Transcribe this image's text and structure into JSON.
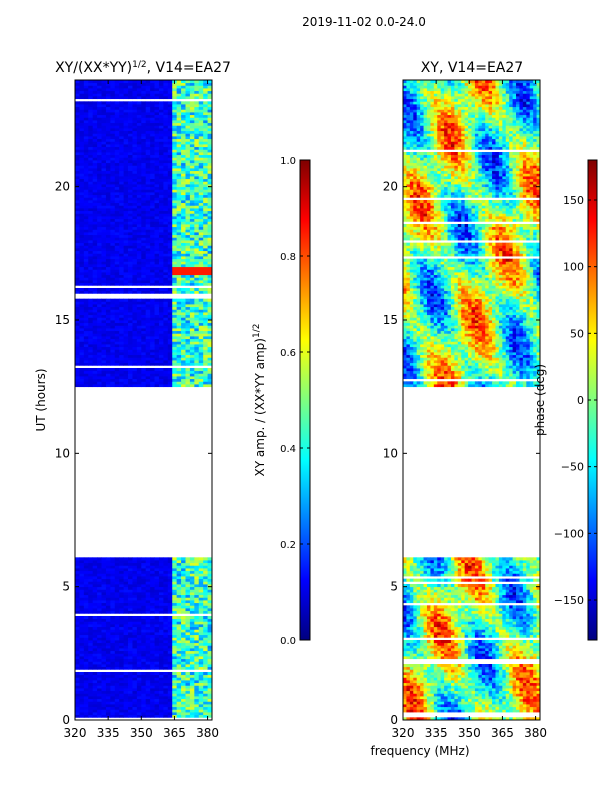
{
  "figure_title": "2019-11-02 0.0-24.0",
  "shared_xlabel": "frequency (MHz)",
  "chart_data": [
    {
      "type": "heatmap",
      "title_main": "XY/(XX*YY)",
      "title_sup": "1/2",
      "title_rest": ", V14=EA27",
      "ylabel": "UT (hours)",
      "xlim": [
        320,
        382
      ],
      "ylim": [
        0,
        24
      ],
      "xticks": [
        320,
        335,
        350,
        365,
        380
      ],
      "yticks": [
        0,
        5,
        10,
        15,
        20
      ],
      "data_gap_hours": [
        6.0,
        12.4
      ],
      "colorbar": {
        "label": "XY amp. / (XX*YY amp)",
        "label_sup": "1/2",
        "range": [
          0.0,
          1.0
        ],
        "ticks": [
          "0.0",
          "0.2",
          "0.4",
          "0.6",
          "0.8",
          "1.0"
        ],
        "colormap": "jet"
      }
    },
    {
      "type": "heatmap",
      "title": "XY, V14=EA27",
      "ylabel": "",
      "xlim": [
        320,
        382
      ],
      "ylim": [
        0,
        24
      ],
      "xticks": [
        320,
        335,
        350,
        365,
        380
      ],
      "yticks": [
        0,
        5,
        10,
        15,
        20
      ],
      "data_gap_hours": [
        6.0,
        12.4
      ],
      "colorbar": {
        "label": "phase (deg)",
        "range": [
          -180,
          180
        ],
        "ticks": [
          "-150",
          "-100",
          "-50",
          "0",
          "50",
          "100",
          "150"
        ],
        "colormap": "jet"
      }
    }
  ]
}
